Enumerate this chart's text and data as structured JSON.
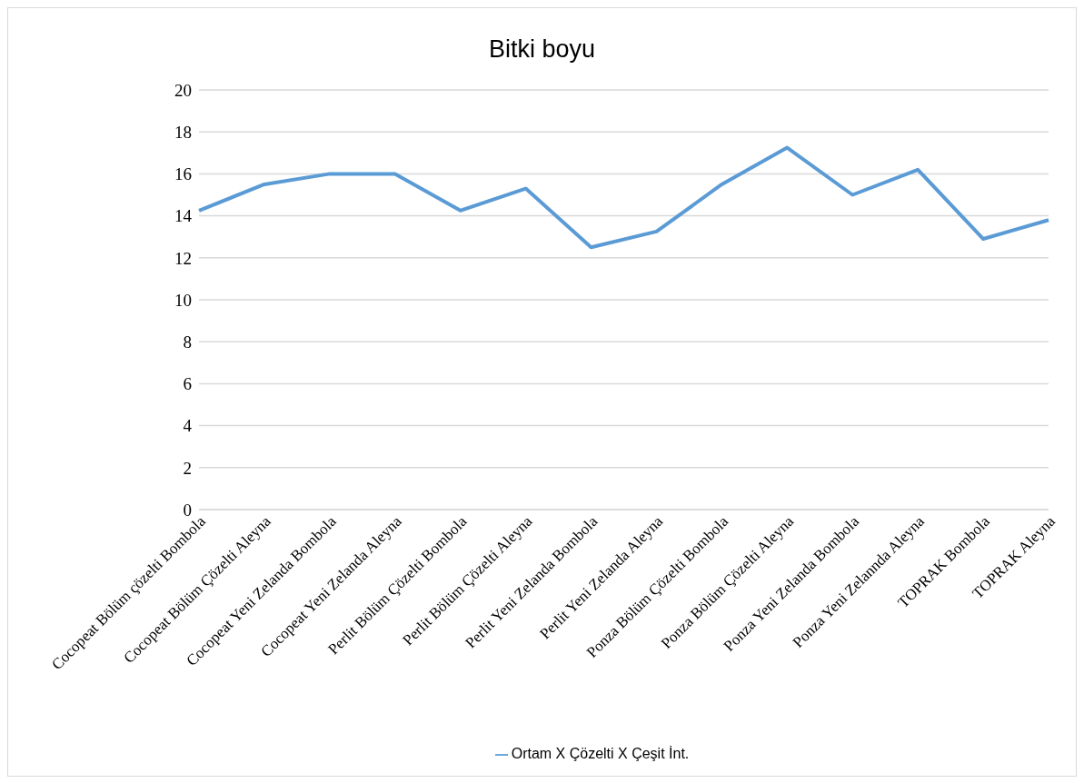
{
  "chart_data": {
    "type": "line",
    "title": "Bitki boyu",
    "categories": [
      "Cocopeat Bölüm çözelti Bombola",
      "Cocopeat Bölüm Çözelti Aleyna",
      "Cocopeat Yeni Zelanda Bombola",
      "Cocopeat Yeni Zelanda Aleyna",
      "Perlit Bölüm Çözelti Bombola",
      "Perlit Bölüm Çözelti Aleyna",
      "Perlit Yeni Zelanda Bombola",
      "Perlit Yeni Zelanda Aleyna",
      "Ponza Bölüm Çözelti Bombola",
      "Ponza Bölüm Çözelti Aleyna",
      "Ponza Yeni Zelanda Bombola",
      "Ponza Yeni Zelannda Aleyna",
      "TOPRAK Bombola",
      "TOPRAK Aleyna"
    ],
    "series": [
      {
        "name": "Ortam X Çözelti X Çeşit İnt.",
        "color": "#5b9bd5",
        "values": [
          14.25,
          15.5,
          16.0,
          16.0,
          14.25,
          15.3,
          12.5,
          13.25,
          15.5,
          17.25,
          15.0,
          16.2,
          12.9,
          13.8
        ]
      }
    ],
    "ylim": [
      0,
      20
    ],
    "yticks": [
      0,
      2,
      4,
      6,
      8,
      10,
      12,
      14,
      16,
      18,
      20
    ],
    "grid": "y",
    "legend": "bottom",
    "marker": "none",
    "line_style": "solid"
  }
}
